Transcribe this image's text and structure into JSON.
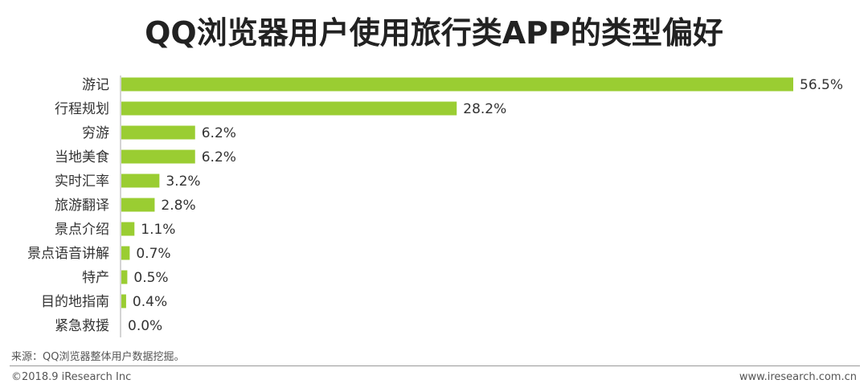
{
  "title": "QQ浏览器用户使用旅行类APP的类型偏好",
  "source_note": "来源：QQ浏览器整体用户数据挖掘。",
  "footer": {
    "copyright": "©2018.9 iResearch Inc",
    "website": "www.iresearch.com.cn"
  },
  "colors": {
    "bar": "#9acd32",
    "axis": "#aaaaaa",
    "text": "#333333"
  },
  "chart_data": {
    "type": "bar",
    "orientation": "horizontal",
    "categories": [
      "游记",
      "行程规划",
      "穷游",
      "当地美食",
      "实时汇率",
      "旅游翻译",
      "景点介绍",
      "景点语音讲解",
      "特产",
      "目的地指南",
      "紧急救援"
    ],
    "values": [
      56.5,
      28.2,
      6.2,
      6.2,
      3.2,
      2.8,
      1.1,
      0.7,
      0.5,
      0.4,
      0.0
    ],
    "value_labels": [
      "56.5%",
      "28.2%",
      "6.2%",
      "6.2%",
      "3.2%",
      "2.8%",
      "1.1%",
      "0.7%",
      "0.5%",
      "0.4%",
      "0.0%"
    ],
    "xlim": [
      0,
      56.5
    ],
    "grid": false,
    "legend": "none"
  }
}
